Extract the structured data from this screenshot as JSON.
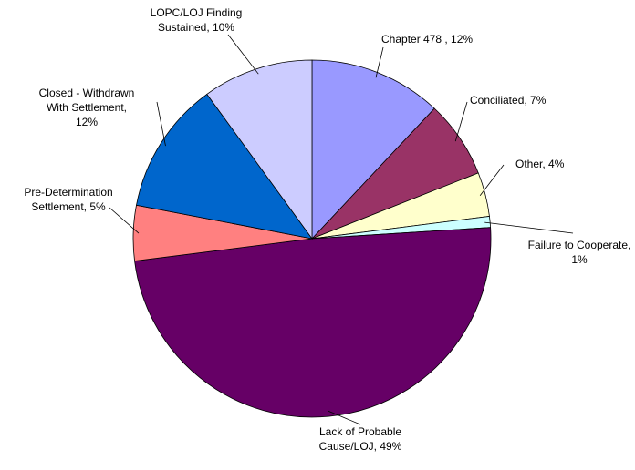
{
  "chart_data": {
    "type": "pie",
    "categories": [
      "Chapter 478",
      "Conciliated",
      "Other",
      "Failure to Cooperate",
      "Lack of Probable Cause/LOJ",
      "Pre-Determination Settlement",
      "Closed - Withdrawn With Settlement",
      "LOPC/LOJ Finding Sustained"
    ],
    "values": [
      12,
      7,
      4,
      1,
      49,
      5,
      12,
      10
    ],
    "labels": [
      [
        "Chapter 478 , 12%"
      ],
      [
        "Conciliated, 7%"
      ],
      [
        "Other, 4%"
      ],
      [
        "Failure to Cooperate,",
        "1%"
      ],
      [
        "Lack of Probable",
        "Cause/LOJ, 49%"
      ],
      [
        "Pre-Determination",
        "Settlement, 5%"
      ],
      [
        "Closed - Withdrawn",
        "With Settlement,",
        "12%"
      ],
      [
        "LOPC/LOJ Finding",
        "Sustained, 10%"
      ]
    ],
    "colors": [
      "#9999ff",
      "#993366",
      "#ffffcc",
      "#ccffff",
      "#660066",
      "#ff8080",
      "#0066cc",
      "#ccccff"
    ]
  }
}
